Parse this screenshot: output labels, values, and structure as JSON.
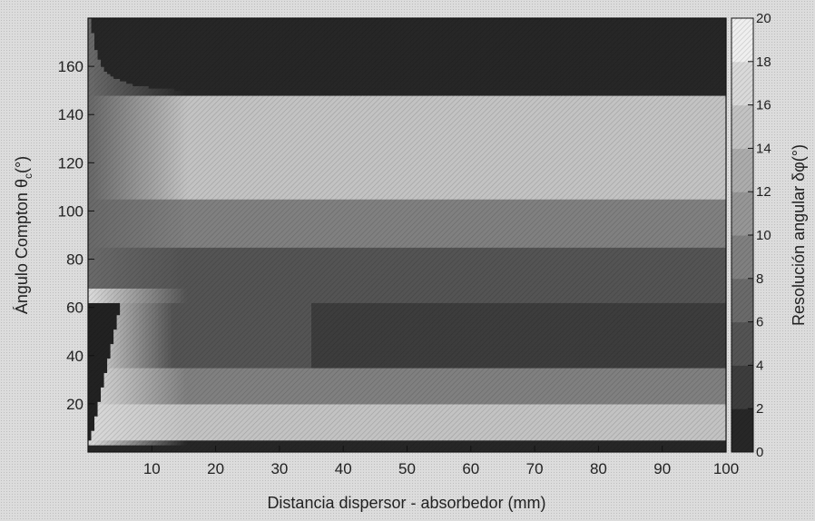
{
  "chart_data": {
    "type": "heatmap",
    "xlabel": "Distancia dispersor - absorbedor (mm)",
    "ylabel": "Ángulo Compton θ",
    "ylabel_subscript": "c",
    "ylabel_unit": "(°)",
    "colorbar_label": "Resolución angular δφ(°)",
    "xlim": [
      0,
      100
    ],
    "ylim": [
      0,
      180
    ],
    "clim": [
      0,
      20
    ],
    "x_ticks": [
      10,
      20,
      30,
      40,
      50,
      60,
      70,
      80,
      90,
      100
    ],
    "y_ticks": [
      20,
      40,
      60,
      80,
      100,
      120,
      140,
      160
    ],
    "colorbar_ticks": [
      0,
      2,
      4,
      6,
      8,
      10,
      12,
      14,
      16,
      18,
      20
    ],
    "grid": false,
    "colormap": "gray",
    "bands_at_large_distance": [
      {
        "theta_range": [
          0,
          5
        ],
        "resolution_deg": 1
      },
      {
        "theta_range": [
          5,
          20
        ],
        "resolution_deg": 15
      },
      {
        "theta_range": [
          20,
          35
        ],
        "resolution_deg": 9
      },
      {
        "theta_range": [
          35,
          62
        ],
        "resolution_deg": 3
      },
      {
        "theta_range": [
          62,
          85
        ],
        "resolution_deg": 5
      },
      {
        "theta_range": [
          85,
          105
        ],
        "resolution_deg": 9
      },
      {
        "theta_range": [
          105,
          148
        ],
        "resolution_deg": 15
      },
      {
        "theta_range": [
          148,
          180
        ],
        "resolution_deg": 1
      }
    ]
  }
}
